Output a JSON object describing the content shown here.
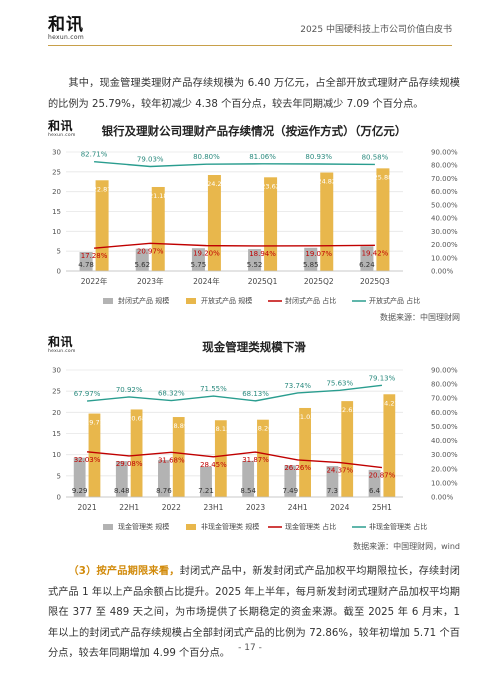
{
  "header": {
    "logo_cn": "和讯",
    "logo_en": "hexun.com",
    "report_title": "2025 中国硬科技上市公司价值白皮书"
  },
  "para1": "其中，现金管理类理财产品存续规模为 6.40 万亿元，占全部开放式理财产品存续规模的比例为 25.79%，较年初减少 4.38 个百分点，较去年同期减少 7.09 个百分点。",
  "para2": {
    "highlight": "（3）按产品期限来看，",
    "body": "封闭式产品中，新发封闭式产品加权平均期限拉长，存续封闭式产品 1 年以上产品余额占比提升。2025 年上半年，每月新发封闭式理财产品加权平均期限在 377 至 489 天之间，为市场提供了长期稳定的资金来源。截至 2025 年 6 月末，1 年以上的封闭式产品存续规模占全部封闭式产品的比例为 72.86%，较年初增加 5.71 个百分点，较去年同期增加 4.99 个百分点。"
  },
  "page_number": "- 17 -",
  "colors": {
    "gray_bar": "#b3b3b3",
    "gold_bar": "#e8b74c",
    "red_line": "#c00000",
    "teal_line": "#2a9d8f",
    "label_red": "#c00000",
    "label_teal": "#2a8a7e"
  },
  "chart_data": [
    {
      "type": "bar",
      "title": "银行及理财公司理财产品存续情况（按运作方式）（万亿元）",
      "categories": [
        "2022年",
        "2023年",
        "2024年",
        "2025Q1",
        "2025Q2",
        "2025Q3"
      ],
      "ylim": [
        0,
        30
      ],
      "yticks": [
        "0",
        "5",
        "10",
        "15",
        "20",
        "25",
        "30"
      ],
      "y2lim": [
        0,
        90
      ],
      "y2ticks": [
        "0.00%",
        "10.00%",
        "20.00%",
        "30.00%",
        "40.00%",
        "50.00%",
        "60.00%",
        "70.00%",
        "80.00%",
        "90.00%"
      ],
      "series": [
        {
          "name": "封闭式产品 规模",
          "kind": "bar",
          "values": [
            4.78,
            5.62,
            5.75,
            5.52,
            5.85,
            6.24
          ],
          "labels": [
            "4.78",
            "5.62",
            "5.75",
            "5.52",
            "5.85",
            "6.24"
          ]
        },
        {
          "name": "开放式产品 规模",
          "kind": "bar",
          "values": [
            22.87,
            21.18,
            24.2,
            23.62,
            24.82,
            25.88
          ],
          "labels": [
            "22.87",
            "21.18",
            "24.2",
            "23.62",
            "24.82",
            "25.88"
          ]
        },
        {
          "name": "封闭式产品 占比",
          "kind": "line",
          "axis": "right",
          "values": [
            17.28,
            20.97,
            19.2,
            18.94,
            19.07,
            19.42
          ],
          "labels": [
            "17.28%",
            "20.97%",
            "19.20%",
            "18.94%",
            "19.07%",
            "19.42%"
          ]
        },
        {
          "name": "开放式产品 占比",
          "kind": "line",
          "axis": "right",
          "values": [
            82.71,
            79.03,
            80.8,
            81.06,
            80.93,
            80.58
          ],
          "labels": [
            "82.71%",
            "79.03%",
            "80.80%",
            "81.06%",
            "80.93%",
            "80.58%"
          ]
        }
      ],
      "source": "数据来源：中国理财网"
    },
    {
      "type": "bar",
      "title": "现金管理类规模下滑",
      "categories": [
        "2021",
        "22H1",
        "2022",
        "23H1",
        "2023",
        "24H1",
        "2024",
        "25H1"
      ],
      "ylim": [
        0,
        30
      ],
      "yticks": [
        "0",
        "5",
        "10",
        "15",
        "20",
        "25",
        "30"
      ],
      "y2lim": [
        0,
        90
      ],
      "y2ticks": [
        "0.00%",
        "10.00%",
        "20.00%",
        "30.00%",
        "40.00%",
        "50.00%",
        "60.00%",
        "70.00%",
        "80.00%",
        "90.00%"
      ],
      "series": [
        {
          "name": "现金管理类 规模",
          "kind": "bar",
          "values": [
            9.29,
            8.48,
            8.76,
            7.21,
            8.54,
            7.49,
            7.3,
            6.4
          ],
          "labels": [
            "9.29",
            "8.48",
            "8.76",
            "7.21",
            "8.54",
            "7.49",
            "7.3",
            "6.4"
          ]
        },
        {
          "name": "非现金管理类 规模",
          "kind": "bar",
          "values": [
            19.71,
            20.68,
            18.89,
            18.13,
            18.26,
            21.03,
            22.65,
            24.27
          ],
          "labels": [
            "19.71",
            "20.68",
            "18.89",
            "18.13",
            "18.26",
            "21.03",
            "22.65",
            "24.27"
          ]
        },
        {
          "name": "现金管理类 占比",
          "kind": "line",
          "axis": "right",
          "values": [
            32.03,
            29.08,
            31.68,
            28.45,
            31.87,
            26.26,
            24.37,
            20.87
          ],
          "labels": [
            "32.03%",
            "29.08%",
            "31.68%",
            "28.45%",
            "31.87%",
            "26.26%",
            "24.37%",
            "20.87%"
          ]
        },
        {
          "name": "非现金管理类 占比",
          "kind": "line",
          "axis": "right",
          "values": [
            67.97,
            70.92,
            68.32,
            71.55,
            68.13,
            73.74,
            75.63,
            79.13
          ],
          "labels": [
            "67.97%",
            "70.92%",
            "68.32%",
            "71.55%",
            "68.13%",
            "73.74%",
            "75.63%",
            "79.13%"
          ]
        }
      ],
      "source": "数据来源：中国理财网，wind"
    }
  ]
}
